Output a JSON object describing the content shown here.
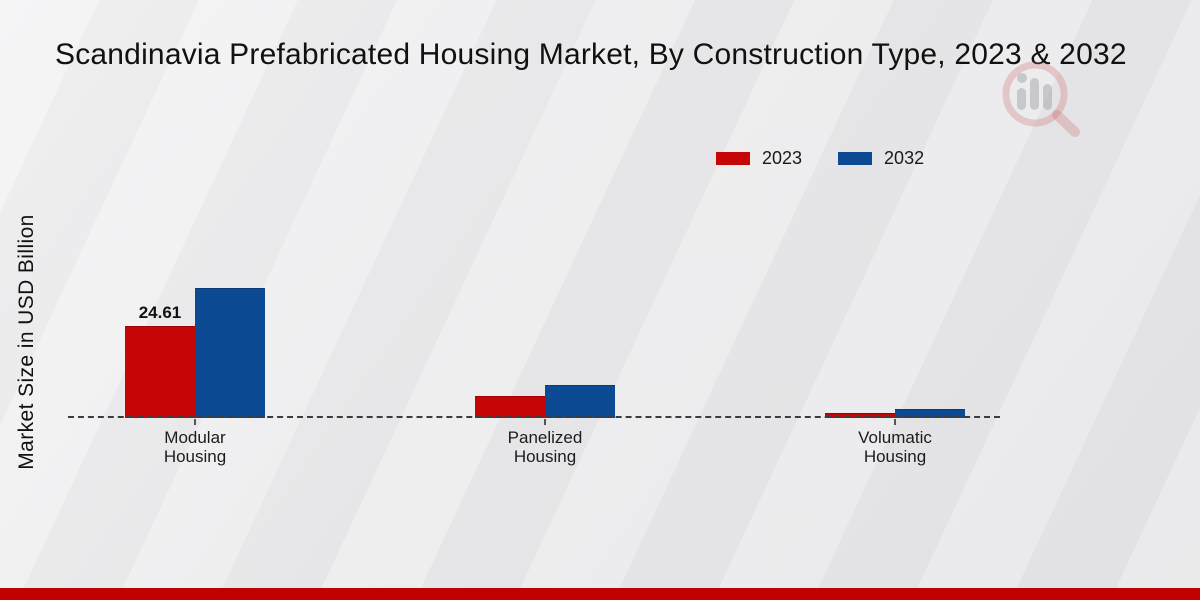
{
  "title": "Scandinavia Prefabricated Housing Market, By Construction Type, 2023 & 2032",
  "y_axis_label": "Market Size in USD Billion",
  "legend": [
    {
      "label": "2023",
      "color": "#c60606"
    },
    {
      "label": "2032",
      "color": "#0d4a94"
    }
  ],
  "watermark_icon": "magnifier-bar-chart-logo",
  "footer": {
    "bar_color": "#bf0101"
  },
  "chart_data": {
    "type": "bar",
    "categories": [
      "Modular Housing",
      "Panelized Housing",
      "Volumatic Housing"
    ],
    "series": [
      {
        "name": "2023",
        "color": "#c60606",
        "border": "#9e0202",
        "values": [
          24.61,
          5.8,
          1.35
        ]
      },
      {
        "name": "2032",
        "color": "#0d4a94",
        "border": "#0a3a78",
        "values": [
          34.8,
          8.7,
          2.5
        ]
      }
    ],
    "data_labels": [
      {
        "series": "2023",
        "category": "Modular Housing",
        "text": "24.61"
      }
    ],
    "title": "Scandinavia Prefabricated Housing Market, By Construction Type, 2023 & 2032",
    "xlabel": "",
    "ylabel": "Market Size in USD Billion",
    "ylim": [
      0,
      38
    ],
    "baseline_style": "dashed",
    "grid": false,
    "legend_position": "top-right"
  }
}
